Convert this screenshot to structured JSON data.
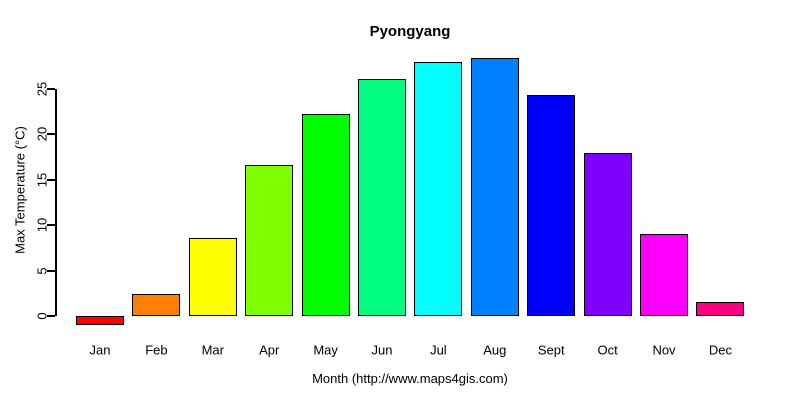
{
  "chart_data": {
    "type": "bar",
    "title": "Pyongyang",
    "xlabel": "Month (http://www.maps4gis.com)",
    "ylabel": "Max Temperature (°C)",
    "categories": [
      "Jan",
      "Feb",
      "Mar",
      "Apr",
      "May",
      "Jun",
      "Jul",
      "Aug",
      "Sept",
      "Oct",
      "Nov",
      "Dec"
    ],
    "values": [
      -1.0,
      2.4,
      8.6,
      16.6,
      22.2,
      26.1,
      28.0,
      28.4,
      24.3,
      18.0,
      9.0,
      1.5
    ],
    "bar_colors": [
      "#FF0000",
      "#FF8000",
      "#FFFF00",
      "#80FF00",
      "#00FF00",
      "#00FF80",
      "#00FFFF",
      "#0080FF",
      "#0000FF",
      "#8000FF",
      "#FF00FF",
      "#FF0080"
    ],
    "bar_border_color": "#000000",
    "yticks": [
      0,
      5,
      10,
      15,
      20,
      25
    ],
    "ylim": [
      -1.5,
      28.6
    ],
    "grid": false,
    "legend": null,
    "axis_color": "#000000",
    "text_color": "#000000",
    "background_color": "#FFFFFF"
  }
}
